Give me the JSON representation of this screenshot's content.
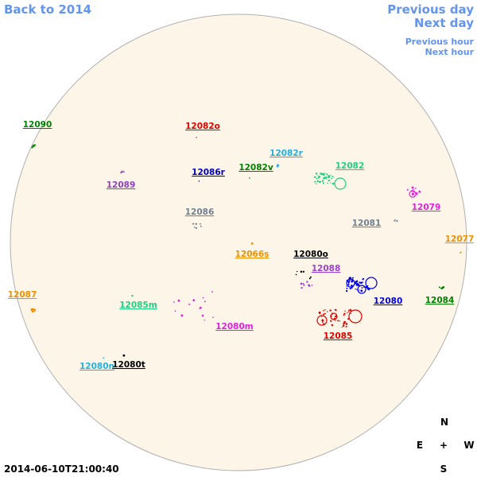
{
  "navigation": {
    "back": "Back to 2014",
    "previous_day": "Previous day",
    "next_day": "Next day",
    "previous_hour": "Previous hour",
    "next_hour": "Next hour"
  },
  "regions": [
    {
      "label": "12090",
      "color": "#008000"
    },
    {
      "label": "12082o",
      "color": "#e00000"
    },
    {
      "label": "12082r",
      "color": "#20b0e0"
    },
    {
      "label": "12086r",
      "color": "#0000c0"
    },
    {
      "label": "12082v",
      "color": "#008000"
    },
    {
      "label": "12082",
      "color": "#20d080"
    },
    {
      "label": "12089",
      "color": "#9040c0"
    },
    {
      "label": "12079",
      "color": "#e020e0"
    },
    {
      "label": "12086",
      "color": "#708090"
    },
    {
      "label": "12081",
      "color": "#708090"
    },
    {
      "label": "12077",
      "color": "#f09000"
    },
    {
      "label": "12066s",
      "color": "#f09000"
    },
    {
      "label": "12080o",
      "color": "#000000"
    },
    {
      "label": "12088",
      "color": "#a040d0"
    },
    {
      "label": "12087",
      "color": "#f09000"
    },
    {
      "label": "12085m",
      "color": "#20d080"
    },
    {
      "label": "12080",
      "color": "#0000e0"
    },
    {
      "label": "12084",
      "color": "#008000"
    },
    {
      "label": "12080m",
      "color": "#e020e0"
    },
    {
      "label": "12085",
      "color": "#e00000"
    },
    {
      "label": "12080n",
      "color": "#20b0e0"
    },
    {
      "label": "12080t",
      "color": "#000000"
    }
  ],
  "compass": {
    "north": "N",
    "east": "E",
    "center": "+",
    "west": "W",
    "south": "S"
  },
  "timestamp": "2014-06-10T21:00:40"
}
